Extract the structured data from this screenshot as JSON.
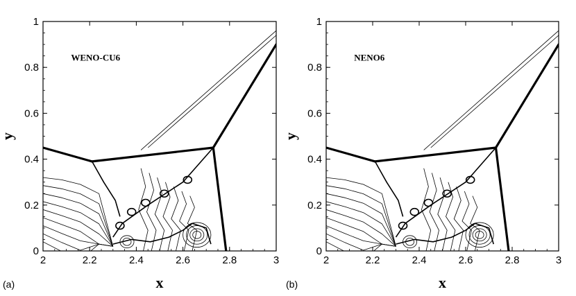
{
  "chart_data": [
    {
      "type": "contour",
      "panel_label": "(a)",
      "inset_label": "WENO-CU6",
      "xlabel": "x",
      "ylabel": "y",
      "xlim": [
        2,
        3
      ],
      "ylim": [
        0,
        1
      ],
      "xticks": [
        "2",
        "2.2",
        "2.4",
        "2.6",
        "2.8",
        "3"
      ],
      "yticks": [
        "0",
        "0.2",
        "0.4",
        "0.6",
        "0.8",
        "1"
      ],
      "grid": false,
      "features": {
        "incident_shock": [
          [
            2.0,
            0.45
          ],
          [
            2.21,
            0.39
          ]
        ],
        "reflected_shock": [
          [
            2.21,
            0.39
          ],
          [
            2.73,
            0.45
          ]
        ],
        "mach_stem": [
          [
            2.73,
            0.45
          ],
          [
            2.785,
            0.0
          ]
        ],
        "bow_shock": [
          [
            2.73,
            0.45
          ],
          [
            3.0,
            0.9
          ]
        ],
        "slip_line": [
          [
            2.73,
            0.45
          ],
          [
            2.6,
            0.3
          ],
          [
            2.45,
            0.2
          ],
          [
            2.34,
            0.12
          ],
          [
            2.3,
            0.06
          ]
        ],
        "contact_lines": [
          [
            [
              2.42,
              0.44
            ],
            [
              3.0,
              0.96
            ]
          ],
          [
            [
              2.45,
              0.45
            ],
            [
              3.0,
              0.94
            ]
          ]
        ]
      }
    },
    {
      "type": "contour",
      "panel_label": "(b)",
      "inset_label": "NENO6",
      "xlabel": "x",
      "ylabel": "y",
      "xlim": [
        2,
        3
      ],
      "ylim": [
        0,
        1
      ],
      "xticks": [
        "2",
        "2.2",
        "2.4",
        "2.6",
        "2.8",
        "3"
      ],
      "yticks": [
        "0",
        "0.2",
        "0.4",
        "0.6",
        "0.8",
        "1"
      ],
      "grid": false,
      "features": {
        "incident_shock": [
          [
            2.0,
            0.45
          ],
          [
            2.21,
            0.39
          ]
        ],
        "reflected_shock": [
          [
            2.21,
            0.39
          ],
          [
            2.73,
            0.45
          ]
        ],
        "mach_stem": [
          [
            2.73,
            0.45
          ],
          [
            2.785,
            0.0
          ]
        ],
        "bow_shock": [
          [
            2.73,
            0.45
          ],
          [
            3.0,
            0.9
          ]
        ],
        "slip_line": [
          [
            2.73,
            0.45
          ],
          [
            2.6,
            0.3
          ],
          [
            2.45,
            0.2
          ],
          [
            2.34,
            0.12
          ],
          [
            2.3,
            0.06
          ]
        ],
        "contact_lines": [
          [
            [
              2.42,
              0.44
            ],
            [
              3.0,
              0.96
            ]
          ],
          [
            [
              2.45,
              0.45
            ],
            [
              3.0,
              0.94
            ]
          ]
        ]
      }
    }
  ]
}
